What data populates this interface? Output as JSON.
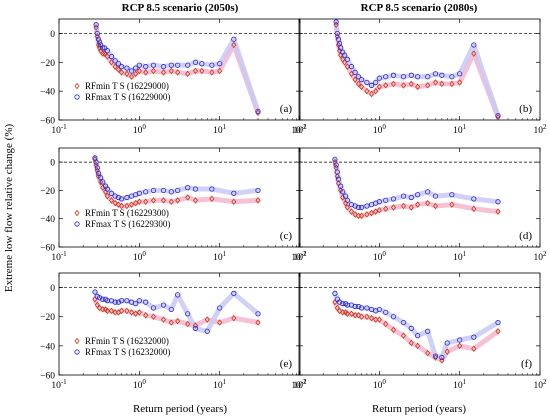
{
  "figure": {
    "column_titles": [
      "RCP 8.5 scenario (2050s)",
      "RCP 8.5 scenario (2080s)"
    ],
    "ylabel": "Extreme low flow relative change (%)",
    "xlabel": "Return period (years)"
  },
  "colors": {
    "rfmin": "#cc3311",
    "rfmax": "#2222dd",
    "rfmin_band": "#f4b6cc",
    "rfmax_band": "#c9c9f6"
  },
  "chart_data": [
    {
      "panel": "(a)",
      "type": "scatter",
      "xscale": "log",
      "xlim": [
        0.1,
        100
      ],
      "ylim": [
        -60,
        10
      ],
      "xticks": [
        "10^-1",
        "10^0",
        "10^1",
        "10^2"
      ],
      "yticks": [
        "-60",
        "-40",
        "-20",
        "0"
      ],
      "reference_line": 0,
      "legend": "left",
      "series": [
        {
          "name": "RFmin T S (16229000)",
          "marker": "diamond",
          "x": [
            0.29,
            0.3,
            0.31,
            0.32,
            0.33,
            0.35,
            0.37,
            0.4,
            0.45,
            0.5,
            0.55,
            0.6,
            0.7,
            0.8,
            0.9,
            1.0,
            1.2,
            1.5,
            2.0,
            2.5,
            3.0,
            4.0,
            5.0,
            6.0,
            8.0,
            10.0,
            15.0,
            30.0
          ],
          "y": [
            4,
            -2,
            -8,
            -10,
            -12,
            -14,
            -14,
            -16,
            -20,
            -23,
            -25,
            -27,
            -28,
            -30,
            -28,
            -26,
            -27,
            -26,
            -27,
            -26,
            -27,
            -28,
            -26,
            -26,
            -27,
            -26,
            -8,
            -55
          ]
        },
        {
          "name": "RFmax T S (16229000)",
          "marker": "circle",
          "x": [
            0.29,
            0.3,
            0.31,
            0.32,
            0.33,
            0.35,
            0.37,
            0.4,
            0.45,
            0.5,
            0.55,
            0.6,
            0.7,
            0.8,
            0.9,
            1.0,
            1.2,
            1.5,
            2.0,
            2.5,
            3.0,
            4.0,
            5.0,
            6.0,
            8.0,
            10.0,
            15.0,
            30.0
          ],
          "y": [
            6,
            0,
            -4,
            -6,
            -8,
            -10,
            -10,
            -12,
            -16,
            -19,
            -21,
            -23,
            -24,
            -26,
            -24,
            -22,
            -23,
            -22,
            -23,
            -22,
            -22,
            -22,
            -20,
            -21,
            -22,
            -21,
            -4,
            -54
          ]
        }
      ]
    },
    {
      "panel": "(b)",
      "type": "scatter",
      "xscale": "log",
      "xlim": [
        0.1,
        100
      ],
      "ylim": [
        -60,
        10
      ],
      "xticks": [
        "10^-1",
        "10^0",
        "10^1",
        "10^2"
      ],
      "yticks": [
        "-60",
        "-40",
        "-20",
        "0"
      ],
      "reference_line": 0,
      "series": [
        {
          "name": "RFmin",
          "marker": "diamond",
          "x": [
            0.29,
            0.3,
            0.31,
            0.32,
            0.33,
            0.35,
            0.37,
            0.4,
            0.45,
            0.5,
            0.55,
            0.6,
            0.7,
            0.8,
            0.9,
            1.0,
            1.2,
            1.5,
            2.0,
            2.5,
            3.0,
            4.0,
            5.0,
            6.0,
            8.0,
            10.0,
            15.0,
            30.0
          ],
          "y": [
            6,
            -2,
            -8,
            -12,
            -15,
            -18,
            -20,
            -23,
            -28,
            -32,
            -35,
            -37,
            -40,
            -42,
            -40,
            -37,
            -36,
            -35,
            -36,
            -35,
            -37,
            -36,
            -34,
            -35,
            -35,
            -34,
            -14,
            -58
          ]
        },
        {
          "name": "RFmax",
          "marker": "circle",
          "x": [
            0.29,
            0.3,
            0.31,
            0.32,
            0.33,
            0.35,
            0.37,
            0.4,
            0.45,
            0.5,
            0.55,
            0.6,
            0.7,
            0.8,
            0.9,
            1.0,
            1.2,
            1.5,
            2.0,
            2.5,
            3.0,
            4.0,
            5.0,
            6.0,
            8.0,
            10.0,
            15.0,
            30.0
          ],
          "y": [
            8,
            0,
            -4,
            -7,
            -10,
            -13,
            -15,
            -18,
            -23,
            -27,
            -30,
            -32,
            -34,
            -36,
            -34,
            -31,
            -30,
            -29,
            -30,
            -29,
            -30,
            -30,
            -28,
            -29,
            -30,
            -28,
            -8,
            -57
          ]
        }
      ]
    },
    {
      "panel": "(c)",
      "type": "scatter",
      "xscale": "log",
      "xlim": [
        0.1,
        100
      ],
      "ylim": [
        -60,
        10
      ],
      "xticks": [
        "10^-1",
        "10^0",
        "10^1",
        "10^2"
      ],
      "yticks": [
        "-60",
        "-40",
        "-20",
        "0"
      ],
      "reference_line": 0,
      "legend": "left",
      "series": [
        {
          "name": "RFmin T S (16229300)",
          "marker": "diamond",
          "x": [
            0.28,
            0.29,
            0.3,
            0.31,
            0.33,
            0.35,
            0.38,
            0.4,
            0.45,
            0.5,
            0.55,
            0.6,
            0.7,
            0.8,
            0.9,
            1.0,
            1.2,
            1.5,
            2.0,
            2.5,
            3.0,
            4.0,
            5.0,
            8.0,
            15.0,
            30.0
          ],
          "y": [
            2,
            -2,
            -6,
            -10,
            -14,
            -18,
            -21,
            -24,
            -27,
            -29,
            -30,
            -31,
            -31,
            -30,
            -29,
            -28,
            -28,
            -27,
            -27,
            -28,
            -27,
            -25,
            -27,
            -26,
            -28,
            -27
          ]
        },
        {
          "name": "RFmax T S (16229300)",
          "marker": "circle",
          "x": [
            0.28,
            0.29,
            0.3,
            0.31,
            0.33,
            0.35,
            0.38,
            0.4,
            0.45,
            0.5,
            0.55,
            0.6,
            0.7,
            0.8,
            0.9,
            1.0,
            1.2,
            1.5,
            2.0,
            2.5,
            3.0,
            4.0,
            5.0,
            8.0,
            15.0,
            30.0
          ],
          "y": [
            3,
            0,
            -4,
            -8,
            -11,
            -14,
            -17,
            -19,
            -22,
            -24,
            -25,
            -26,
            -25,
            -24,
            -23,
            -22,
            -21,
            -20,
            -20,
            -21,
            -20,
            -18,
            -19,
            -19,
            -22,
            -20
          ]
        }
      ]
    },
    {
      "panel": "(d)",
      "type": "scatter",
      "xscale": "log",
      "xlim": [
        0.1,
        100
      ],
      "ylim": [
        -60,
        10
      ],
      "xticks": [
        "10^-1",
        "10^0",
        "10^1",
        "10^2"
      ],
      "yticks": [
        "-60",
        "-40",
        "-20",
        "0"
      ],
      "reference_line": 0,
      "series": [
        {
          "name": "RFmin",
          "marker": "diamond",
          "x": [
            0.28,
            0.29,
            0.3,
            0.31,
            0.33,
            0.35,
            0.38,
            0.4,
            0.45,
            0.5,
            0.55,
            0.6,
            0.7,
            0.8,
            0.9,
            1.0,
            1.2,
            1.5,
            2.0,
            2.5,
            3.0,
            4.0,
            5.0,
            8.0,
            15.0,
            30.0
          ],
          "y": [
            0,
            -4,
            -10,
            -15,
            -20,
            -25,
            -29,
            -32,
            -35,
            -37,
            -38,
            -38,
            -37,
            -36,
            -35,
            -34,
            -33,
            -32,
            -31,
            -32,
            -30,
            -29,
            -31,
            -30,
            -33,
            -35
          ]
        },
        {
          "name": "RFmax",
          "marker": "circle",
          "x": [
            0.28,
            0.29,
            0.3,
            0.31,
            0.33,
            0.35,
            0.38,
            0.4,
            0.45,
            0.5,
            0.55,
            0.6,
            0.7,
            0.8,
            0.9,
            1.0,
            1.2,
            1.5,
            2.0,
            2.5,
            3.0,
            4.0,
            5.0,
            8.0,
            15.0,
            30.0
          ],
          "y": [
            2,
            -2,
            -7,
            -12,
            -17,
            -21,
            -24,
            -27,
            -30,
            -31,
            -32,
            -32,
            -31,
            -30,
            -29,
            -28,
            -27,
            -26,
            -24,
            -25,
            -23,
            -21,
            -24,
            -23,
            -26,
            -28
          ]
        }
      ]
    },
    {
      "panel": "(e)",
      "type": "scatter",
      "xscale": "log",
      "xlim": [
        0.1,
        100
      ],
      "ylim": [
        -60,
        10
      ],
      "xticks": [
        "10^-1",
        "10^0",
        "10^1",
        "10^2"
      ],
      "yticks": [
        "-60",
        "-40",
        "-20",
        "0"
      ],
      "reference_line": 0,
      "legend": "left",
      "series": [
        {
          "name": "RFmin T S (16232000)",
          "marker": "diamond",
          "x": [
            0.28,
            0.3,
            0.32,
            0.35,
            0.38,
            0.4,
            0.45,
            0.5,
            0.55,
            0.6,
            0.7,
            0.8,
            0.9,
            1.0,
            1.2,
            1.5,
            2.0,
            2.5,
            3.0,
            4.0,
            5.0,
            7.0,
            10.0,
            15.0,
            30.0
          ],
          "y": [
            -8,
            -12,
            -14,
            -15,
            -15,
            -16,
            -16,
            -17,
            -17,
            -16,
            -16,
            -17,
            -18,
            -17,
            -19,
            -20,
            -22,
            -24,
            -23,
            -25,
            -26,
            -22,
            -24,
            -21,
            -24
          ]
        },
        {
          "name": "RFmax T S (16232000)",
          "marker": "circle",
          "x": [
            0.28,
            0.3,
            0.32,
            0.35,
            0.38,
            0.4,
            0.45,
            0.5,
            0.55,
            0.6,
            0.7,
            0.8,
            0.9,
            1.0,
            1.2,
            1.5,
            2.0,
            2.5,
            3.0,
            4.0,
            5.0,
            7.0,
            10.0,
            15.0,
            30.0
          ],
          "y": [
            -3,
            -6,
            -7,
            -8,
            -8,
            -9,
            -9,
            -10,
            -10,
            -9,
            -9,
            -10,
            -11,
            -9,
            -10,
            -14,
            -12,
            -15,
            -5,
            -18,
            -28,
            -30,
            -14,
            -4,
            -18
          ]
        }
      ]
    },
    {
      "panel": "(f)",
      "type": "scatter",
      "xscale": "log",
      "xlim": [
        0.1,
        100
      ],
      "ylim": [
        -60,
        10
      ],
      "xticks": [
        "10^-1",
        "10^0",
        "10^1",
        "10^2"
      ],
      "yticks": [
        "-60",
        "-40",
        "-20",
        "0"
      ],
      "reference_line": 0,
      "series": [
        {
          "name": "RFmin",
          "marker": "diamond",
          "x": [
            0.28,
            0.3,
            0.32,
            0.35,
            0.38,
            0.4,
            0.45,
            0.5,
            0.55,
            0.6,
            0.7,
            0.8,
            0.9,
            1.0,
            1.2,
            1.5,
            2.0,
            2.5,
            3.0,
            4.0,
            5.0,
            6.0,
            7.0,
            10.0,
            15.0,
            30.0
          ],
          "y": [
            -10,
            -14,
            -16,
            -17,
            -17,
            -18,
            -18,
            -19,
            -19,
            -20,
            -20,
            -21,
            -22,
            -22,
            -25,
            -29,
            -33,
            -38,
            -40,
            -45,
            -48,
            -50,
            -44,
            -40,
            -42,
            -30
          ]
        },
        {
          "name": "RFmax",
          "marker": "circle",
          "x": [
            0.28,
            0.3,
            0.32,
            0.35,
            0.38,
            0.4,
            0.45,
            0.5,
            0.55,
            0.6,
            0.7,
            0.8,
            0.9,
            1.0,
            1.2,
            1.5,
            2.0,
            2.5,
            3.0,
            4.0,
            5.0,
            6.0,
            7.0,
            10.0,
            15.0,
            30.0
          ],
          "y": [
            -4,
            -8,
            -10,
            -11,
            -11,
            -12,
            -12,
            -13,
            -13,
            -14,
            -14,
            -15,
            -16,
            -15,
            -17,
            -20,
            -24,
            -28,
            -33,
            -30,
            -47,
            -48,
            -38,
            -36,
            -34,
            -24
          ]
        }
      ]
    }
  ]
}
